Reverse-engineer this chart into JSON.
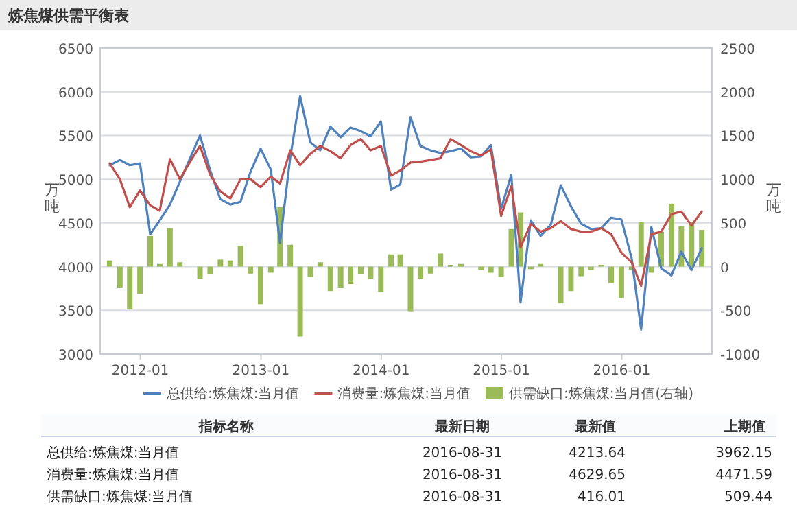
{
  "chart_data": {
    "type": "line",
    "title": "炼焦煤供需平衡表",
    "ylabel": "万吨",
    "y2label": "万吨",
    "x": [
      "2011-09-30",
      "2011-10-31",
      "2011-11-30",
      "2011-12-31",
      "2012-01-31",
      "2012-02-29",
      "2012-03-31",
      "2012-04-30",
      "2012-05-31",
      "2012-06-30",
      "2012-07-31",
      "2012-08-31",
      "2012-09-30",
      "2012-10-31",
      "2012-11-30",
      "2012-12-31",
      "2013-01-31",
      "2013-02-28",
      "2013-03-31",
      "2013-04-30",
      "2013-05-31",
      "2013-06-30",
      "2013-07-31",
      "2013-08-31",
      "2013-09-30",
      "2013-10-31",
      "2013-11-30",
      "2013-12-31",
      "2014-01-31",
      "2014-02-28",
      "2014-03-31",
      "2014-04-30",
      "2014-05-31",
      "2014-06-30",
      "2014-07-31",
      "2014-08-31",
      "2014-09-30",
      "2014-10-31",
      "2014-11-30",
      "2014-12-31",
      "2015-01-31",
      "2015-02-28",
      "2015-03-31",
      "2015-04-30",
      "2015-05-31",
      "2015-06-30",
      "2015-07-31",
      "2015-08-31",
      "2015-09-30",
      "2015-10-31",
      "2015-11-30",
      "2015-12-31",
      "2016-01-31",
      "2016-02-29",
      "2016-03-31",
      "2016-04-30",
      "2016-05-31",
      "2016-06-30",
      "2016-07-31",
      "2016-08-31"
    ],
    "series": [
      {
        "name": "供需缺口:炼焦煤:当月值(右轴)",
        "type": "bar",
        "axis": "y2",
        "color": "#9bbb59",
        "values": [
          70,
          -240,
          -490,
          -310,
          350,
          30,
          440,
          50,
          0,
          -140,
          -90,
          80,
          70,
          240,
          -80,
          -430,
          -70,
          680,
          250,
          -800,
          -120,
          50,
          -280,
          -240,
          -200,
          -90,
          -140,
          -290,
          140,
          140,
          -510,
          -140,
          -80,
          150,
          20,
          30,
          0,
          -40,
          -70,
          -120,
          430,
          620,
          -30,
          30,
          0,
          -420,
          -280,
          -110,
          -40,
          20,
          -190,
          -360,
          -40,
          510,
          -70,
          400,
          720,
          460,
          510,
          420
        ]
      },
      {
        "name": "总供给:炼焦煤:当月值",
        "color": "#4f81bd",
        "values": [
          5160,
          5220,
          5160,
          5180,
          4370,
          4530,
          4710,
          4970,
          5240,
          5500,
          5100,
          4770,
          4710,
          4740,
          5080,
          5350,
          5110,
          4270,
          5250,
          5950,
          5420,
          5330,
          5600,
          5480,
          5590,
          5550,
          5490,
          5660,
          4880,
          4940,
          5710,
          5380,
          5330,
          5300,
          5320,
          5350,
          5250,
          5260,
          5390,
          4660,
          5050,
          3590,
          4530,
          4350,
          4480,
          4930,
          4690,
          4490,
          4430,
          4440,
          4560,
          4540,
          4100,
          3280,
          4450,
          3980,
          3900,
          4170,
          3960,
          4210
        ]
      },
      {
        "name": "消费量:炼焦煤:当月值",
        "color": "#c0504d",
        "values": [
          5180,
          5000,
          4680,
          4870,
          4700,
          4640,
          5230,
          5000,
          5200,
          5380,
          5050,
          4860,
          4780,
          5000,
          5000,
          4910,
          5030,
          4950,
          5330,
          5160,
          5290,
          5380,
          5320,
          5240,
          5390,
          5460,
          5330,
          5380,
          5040,
          5100,
          5190,
          5200,
          5220,
          5240,
          5460,
          5390,
          5320,
          5270,
          5340,
          4580,
          4920,
          4220,
          4490,
          4400,
          4440,
          4520,
          4430,
          4400,
          4400,
          4440,
          4370,
          4160,
          4050,
          3780,
          4370,
          4400,
          4600,
          4630,
          4470,
          4630
        ]
      }
    ],
    "xlim": [
      "2011-09-01",
      "2016-10-01"
    ],
    "xticks": [
      {
        "value": "2012-01-01",
        "label": "2012-01"
      },
      {
        "value": "2013-01-01",
        "label": "2013-01"
      },
      {
        "value": "2014-01-01",
        "label": "2014-01"
      },
      {
        "value": "2015-01-01",
        "label": "2015-01"
      },
      {
        "value": "2016-01-01",
        "label": "2016-01"
      }
    ],
    "ylim": [
      3000,
      6500
    ],
    "yticks": [
      3000,
      3500,
      4000,
      4500,
      5000,
      5500,
      6000,
      6500
    ],
    "y2lim": [
      -1000,
      2500
    ],
    "y2ticks": [
      -1000,
      -500,
      0,
      500,
      1000,
      1500,
      2000,
      2500
    ],
    "grid": "y",
    "legend": "bottom",
    "annotations": [
      "指标名称",
      "最新日期",
      "最新值",
      "上期值",
      "总供给:炼焦煤:当月值",
      "2016-08-31",
      "4213.64",
      "3962.15",
      "消费量:炼焦煤:当月值",
      "2016-08-31",
      "4629.65",
      "4471.59",
      "供需缺口:炼焦煤:当月值",
      "2016-08-31",
      "416.01",
      "509.44"
    ]
  }
}
